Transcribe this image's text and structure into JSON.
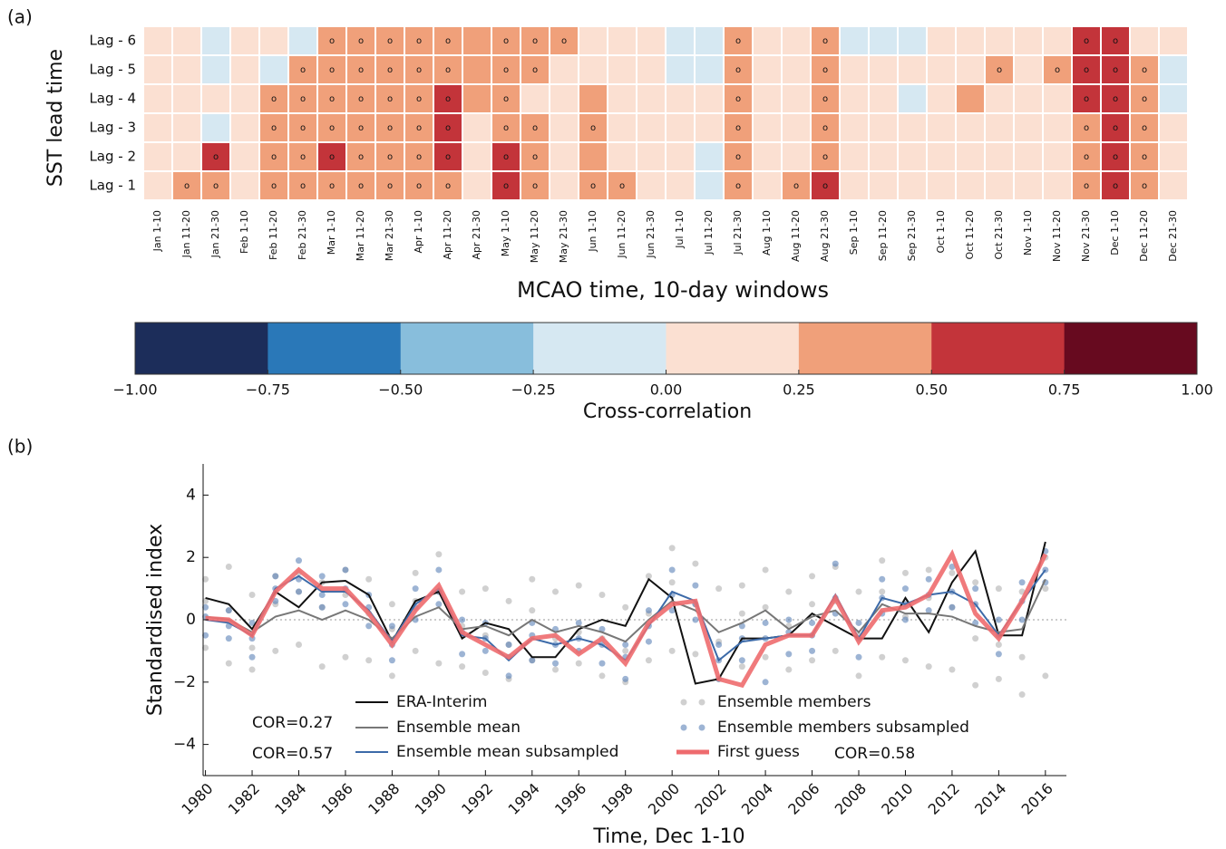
{
  "chart_data": [
    {
      "type": "heatmap",
      "panel_label": "(a)",
      "xlabel": "MCAO time, 10-day windows",
      "ylabel": "SST lead time",
      "categories": [
        "Jan 1-10",
        "Jan 11-20",
        "Jan 21-30",
        "Feb 1-10",
        "Feb 11-20",
        "Feb 21-30",
        "Mar 1-10",
        "Mar 11-20",
        "Mar 21-30",
        "Apr 1-10",
        "Apr 11-20",
        "Apr 21-30",
        "May 1-10",
        "May 11-20",
        "May 21-30",
        "Jun 1-10",
        "Jun 11-20",
        "Jun 21-30",
        "Jul 1-10",
        "Jul 11-20",
        "Jul 21-30",
        "Aug 1-10",
        "Aug 11-20",
        "Aug 21-30",
        "Sep 1-10",
        "Sep 11-20",
        "Sep 21-30",
        "Oct 1-10",
        "Oct 11-20",
        "Oct 21-30",
        "Nov 1-10",
        "Nov 11-20",
        "Nov 21-30",
        "Dec 1-10",
        "Dec 11-20",
        "Dec 21-30"
      ],
      "rows": [
        "Lag - 6",
        "Lag - 5",
        "Lag - 4",
        "Lag - 3",
        "Lag - 2",
        "Lag - 1"
      ],
      "values": [
        [
          0.12,
          0.12,
          -0.1,
          0.12,
          0.12,
          -0.1,
          0.4,
          0.4,
          0.4,
          0.4,
          0.4,
          0.4,
          0.4,
          0.4,
          0.4,
          0.12,
          0.12,
          0.12,
          -0.1,
          -0.1,
          0.4,
          0.12,
          0.12,
          0.4,
          -0.1,
          -0.1,
          -0.1,
          0.12,
          0.12,
          0.12,
          0.12,
          0.12,
          0.6,
          0.6,
          0.12,
          0.12
        ],
        [
          0.12,
          0.12,
          -0.1,
          0.12,
          -0.1,
          0.4,
          0.4,
          0.4,
          0.4,
          0.4,
          0.4,
          0.4,
          0.4,
          0.4,
          0.12,
          0.12,
          0.12,
          0.12,
          -0.1,
          -0.1,
          0.4,
          0.12,
          0.12,
          0.4,
          0.12,
          0.12,
          0.12,
          0.12,
          0.12,
          0.4,
          0.12,
          0.4,
          0.6,
          0.6,
          0.4,
          -0.1
        ],
        [
          0.12,
          0.12,
          0.12,
          0.12,
          0.4,
          0.4,
          0.4,
          0.4,
          0.4,
          0.4,
          0.6,
          0.4,
          0.4,
          0.12,
          0.12,
          0.4,
          0.12,
          0.12,
          0.12,
          0.12,
          0.4,
          0.12,
          0.12,
          0.4,
          0.12,
          0.12,
          -0.1,
          0.12,
          0.4,
          0.12,
          0.12,
          0.12,
          0.6,
          0.6,
          0.4,
          -0.1
        ],
        [
          0.12,
          0.12,
          -0.1,
          0.12,
          0.4,
          0.4,
          0.4,
          0.4,
          0.4,
          0.4,
          0.6,
          0.12,
          0.4,
          0.4,
          0.12,
          0.4,
          0.12,
          0.12,
          0.12,
          0.12,
          0.4,
          0.12,
          0.12,
          0.4,
          0.12,
          0.12,
          0.12,
          0.12,
          0.12,
          0.12,
          0.12,
          0.12,
          0.4,
          0.6,
          0.4,
          0.12
        ],
        [
          0.12,
          0.12,
          0.6,
          0.12,
          0.4,
          0.4,
          0.6,
          0.4,
          0.4,
          0.4,
          0.6,
          0.12,
          0.6,
          0.4,
          0.12,
          0.4,
          0.12,
          0.12,
          0.12,
          -0.1,
          0.4,
          0.12,
          0.12,
          0.4,
          0.12,
          0.12,
          0.12,
          0.12,
          0.12,
          0.12,
          0.12,
          0.12,
          0.4,
          0.6,
          0.4,
          0.12
        ],
        [
          0.12,
          0.4,
          0.4,
          0.12,
          0.4,
          0.4,
          0.4,
          0.4,
          0.4,
          0.4,
          0.4,
          0.12,
          0.6,
          0.4,
          0.12,
          0.4,
          0.4,
          0.12,
          0.12,
          -0.1,
          0.4,
          0.12,
          0.4,
          0.6,
          0.12,
          0.12,
          0.12,
          0.12,
          0.12,
          0.12,
          0.12,
          0.12,
          0.4,
          0.6,
          0.4,
          0.12
        ]
      ],
      "marker": "o",
      "significant": [
        [
          6,
          7,
          8,
          9,
          10,
          12,
          13,
          14,
          20,
          23,
          32,
          33
        ],
        [
          5,
          6,
          7,
          8,
          9,
          10,
          12,
          13,
          20,
          23,
          29,
          31,
          32,
          33,
          34
        ],
        [
          4,
          5,
          6,
          7,
          8,
          9,
          10,
          12,
          20,
          23,
          32,
          33,
          34
        ],
        [
          4,
          5,
          6,
          7,
          8,
          9,
          10,
          12,
          13,
          15,
          20,
          23,
          32,
          33,
          34
        ],
        [
          2,
          4,
          5,
          6,
          7,
          8,
          9,
          10,
          12,
          13,
          20,
          23,
          32,
          33,
          34
        ],
        [
          1,
          2,
          4,
          5,
          6,
          7,
          8,
          9,
          10,
          12,
          13,
          15,
          16,
          20,
          22,
          23,
          32,
          33,
          34
        ]
      ],
      "colorbar": {
        "label": "Cross-correlation",
        "clim": [
          -1,
          1
        ],
        "colors": [
          "#1c2d5a",
          "#2a78b8",
          "#88bedc",
          "#d6e8f2",
          "#fbe0d2",
          "#f0a07a",
          "#c3343a",
          "#670a1f"
        ],
        "ticks": [
          {
            "value": -1,
            "label": "−1.00"
          },
          {
            "value": -0.75,
            "label": "−0.75"
          },
          {
            "value": -0.5,
            "label": "−0.50"
          },
          {
            "value": -0.25,
            "label": "−0.25"
          },
          {
            "value": 0,
            "label": "0.00"
          },
          {
            "value": 0.25,
            "label": "0.25"
          },
          {
            "value": 0.5,
            "label": "0.50"
          },
          {
            "value": 0.75,
            "label": "0.75"
          },
          {
            "value": 1,
            "label": "1.00"
          }
        ]
      }
    },
    {
      "type": "line",
      "panel_label": "(b)",
      "xlabel": "Time, Dec 1-10",
      "ylabel": "Standardised index",
      "x": [
        1980,
        1981,
        1982,
        1983,
        1984,
        1985,
        1986,
        1987,
        1988,
        1989,
        1990,
        1991,
        1992,
        1993,
        1994,
        1995,
        1996,
        1997,
        1998,
        1999,
        2000,
        2001,
        2002,
        2003,
        2004,
        2005,
        2006,
        2007,
        2008,
        2009,
        2010,
        2011,
        2012,
        2013,
        2014,
        2015,
        2016
      ],
      "xlim": [
        1979.9,
        2016.9
      ],
      "ylim": [
        -5,
        5
      ],
      "xticks": [
        1980,
        1982,
        1984,
        1986,
        1988,
        1990,
        1992,
        1994,
        1996,
        1998,
        2000,
        2002,
        2004,
        2006,
        2008,
        2010,
        2012,
        2014,
        2016
      ],
      "yticks": [
        {
          "value": -4,
          "label": "−4"
        },
        {
          "value": -2,
          "label": "−2"
        },
        0,
        2,
        4
      ],
      "hline": 0,
      "series": [
        {
          "name": "ERA-Interim",
          "kind": "line",
          "color": "#111111",
          "width": 2,
          "values": [
            0.7,
            0.5,
            -0.3,
            0.9,
            0.4,
            1.2,
            1.25,
            0.8,
            -0.7,
            0.6,
            0.9,
            -0.6,
            -0.1,
            -0.3,
            -1.2,
            -1.2,
            -0.3,
            0.0,
            -0.2,
            1.3,
            0.7,
            -2.05,
            -1.9,
            -0.6,
            -0.6,
            -0.5,
            0.2,
            -0.2,
            -0.6,
            -0.6,
            0.7,
            -0.4,
            1.2,
            2.2,
            -0.5,
            -0.5,
            2.5
          ]
        },
        {
          "name": "Ensemble mean",
          "kind": "line",
          "color": "#777777",
          "width": 2,
          "values": [
            0.1,
            0.0,
            -0.4,
            0.1,
            0.3,
            0.0,
            0.3,
            0.0,
            -0.6,
            0.1,
            0.4,
            -0.3,
            -0.2,
            -0.5,
            0.0,
            -0.4,
            -0.2,
            -0.4,
            -0.7,
            0.0,
            0.6,
            0.3,
            -0.4,
            -0.1,
            0.3,
            -0.3,
            0.1,
            0.3,
            -0.4,
            0.5,
            0.2,
            0.2,
            0.1,
            -0.2,
            -0.4,
            -0.3,
            1.3
          ]
        },
        {
          "name": "Ensemble mean subsampled",
          "kind": "line",
          "color": "#3c6aa8",
          "width": 2,
          "values": [
            0.0,
            -0.1,
            -0.5,
            1.0,
            1.4,
            0.9,
            0.9,
            0.3,
            -0.7,
            0.5,
            1.0,
            -0.5,
            -0.6,
            -1.3,
            -0.6,
            -0.8,
            -0.6,
            -0.8,
            -1.3,
            -0.2,
            0.9,
            0.6,
            -1.3,
            -0.7,
            -0.6,
            -0.5,
            -0.5,
            0.8,
            -0.6,
            0.7,
            0.5,
            0.8,
            0.9,
            0.5,
            -0.5,
            0.6,
            1.6
          ]
        },
        {
          "name": "Ensemble members",
          "kind": "scatter",
          "color": "#b0b0b0",
          "values": [
            [
              1.3,
              -0.9,
              0.6
            ],
            [
              1.7,
              -1.4,
              0.3
            ],
            [
              0.8,
              -1.6,
              -0.9
            ],
            [
              1.4,
              -1.0,
              0.5
            ],
            [
              1.5,
              -0.8,
              0.9
            ],
            [
              1.2,
              -1.5,
              0.4
            ],
            [
              1.6,
              -1.2,
              0.8
            ],
            [
              1.3,
              -1.3,
              0.2
            ],
            [
              0.5,
              -1.8,
              -0.3
            ],
            [
              1.5,
              -1.0,
              0.6
            ],
            [
              2.1,
              -1.4,
              0.9
            ],
            [
              0.9,
              -1.5,
              -0.2
            ],
            [
              1.0,
              -1.7,
              -0.5
            ],
            [
              0.6,
              -1.9,
              -0.8
            ],
            [
              1.3,
              -1.3,
              0.3
            ],
            [
              0.9,
              -1.6,
              -0.6
            ],
            [
              1.1,
              -1.4,
              -0.4
            ],
            [
              0.8,
              -1.8,
              -0.6
            ],
            [
              0.4,
              -2.0,
              -1.0
            ],
            [
              1.4,
              -1.3,
              0.2
            ],
            [
              2.3,
              -1.0,
              1.2
            ],
            [
              1.8,
              -1.1,
              0.5
            ],
            [
              1.0,
              -1.9,
              -0.7
            ],
            [
              1.1,
              -1.5,
              0.2
            ],
            [
              1.6,
              -1.2,
              0.4
            ],
            [
              0.9,
              -1.6,
              -0.2
            ],
            [
              1.4,
              -1.3,
              0.5
            ],
            [
              1.7,
              -1.0,
              0.6
            ],
            [
              0.9,
              -1.8,
              -0.5
            ],
            [
              1.9,
              -1.2,
              0.9
            ],
            [
              1.5,
              -1.3,
              0.1
            ],
            [
              1.6,
              -1.5,
              0.7
            ],
            [
              1.5,
              -1.6,
              0.4
            ],
            [
              1.2,
              -2.1,
              -0.6
            ],
            [
              1.0,
              -1.9,
              -0.8
            ],
            [
              0.9,
              -2.4,
              -1.2
            ],
            [
              2.0,
              -1.8,
              1.0
            ]
          ]
        },
        {
          "name": "Ensemble members subsampled",
          "kind": "scatter",
          "color": "#5b82b8",
          "values": [
            [
              0.4,
              -0.5,
              0.1
            ],
            [
              0.3,
              -0.6,
              -0.2
            ],
            [
              -0.1,
              -1.2,
              -0.6
            ],
            [
              1.4,
              0.6,
              1.0
            ],
            [
              1.9,
              0.9,
              1.3
            ],
            [
              1.4,
              0.4,
              0.8
            ],
            [
              1.6,
              0.5,
              1.0
            ],
            [
              0.8,
              -0.2,
              0.4
            ],
            [
              -0.2,
              -1.3,
              -0.8
            ],
            [
              1.0,
              0.0,
              0.4
            ],
            [
              1.6,
              0.5,
              0.9
            ],
            [
              0.0,
              -1.1,
              -0.4
            ],
            [
              -0.1,
              -1.0,
              -0.6
            ],
            [
              -0.8,
              -1.8,
              -1.2
            ],
            [
              -0.1,
              -1.3,
              -0.5
            ],
            [
              -0.3,
              -1.4,
              -0.8
            ],
            [
              -0.1,
              -1.0,
              -0.6
            ],
            [
              -0.3,
              -1.4,
              -0.8
            ],
            [
              -0.8,
              -1.9,
              -1.2
            ],
            [
              0.3,
              -0.7,
              -0.2
            ],
            [
              1.6,
              0.3,
              0.8
            ],
            [
              1.1,
              0.0,
              0.5
            ],
            [
              -0.8,
              -1.9,
              -1.3
            ],
            [
              -0.2,
              -1.3,
              -0.6
            ],
            [
              -0.1,
              -2.0,
              -0.6
            ],
            [
              0.0,
              -1.1,
              -0.4
            ],
            [
              -0.1,
              -1.0,
              -0.5
            ],
            [
              1.8,
              0.2,
              0.7
            ],
            [
              -0.1,
              -1.2,
              -0.6
            ],
            [
              1.3,
              0.2,
              0.7
            ],
            [
              1.0,
              0.0,
              0.5
            ],
            [
              1.3,
              0.3,
              0.8
            ],
            [
              1.7,
              0.4,
              0.9
            ],
            [
              1.0,
              -0.1,
              0.5
            ],
            [
              0.0,
              -1.1,
              -0.5
            ],
            [
              1.2,
              0.0,
              0.6
            ],
            [
              2.2,
              1.2,
              1.6
            ]
          ]
        },
        {
          "name": "First guess",
          "kind": "line",
          "color": "#ee6b6e",
          "width": 5,
          "values": [
            0.05,
            0.0,
            -0.5,
            0.9,
            1.6,
            1.0,
            1.0,
            0.2,
            -0.8,
            0.3,
            1.1,
            -0.4,
            -0.8,
            -1.2,
            -0.6,
            -0.5,
            -1.1,
            -0.6,
            -1.4,
            -0.1,
            0.5,
            0.6,
            -1.9,
            -2.1,
            -0.8,
            -0.5,
            -0.5,
            0.7,
            -0.7,
            0.3,
            0.4,
            0.8,
            2.1,
            0.2,
            -0.6,
            0.6,
            2.1
          ]
        }
      ],
      "annotations": [
        {
          "text": "COR=0.27",
          "color": "#8c8c8c"
        },
        {
          "text": "COR=0.57",
          "color": "#4a78b4"
        },
        {
          "text": "COR=0.58",
          "color": "#ee6b6e"
        }
      ]
    }
  ]
}
